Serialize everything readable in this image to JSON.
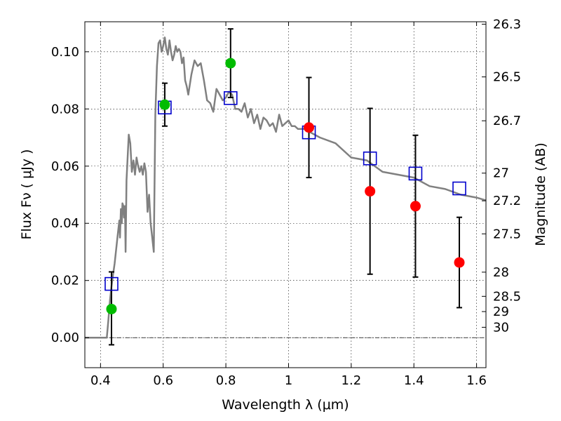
{
  "chart_data": {
    "type": "scatter",
    "xlabel": "Wavelength  λ (μm)",
    "ylabel": "Flux  Fν  ( μJy )",
    "y2label": "Magnitude (AB)",
    "xlim": [
      0.35,
      1.63
    ],
    "ylim": [
      -0.0105,
      0.1105
    ],
    "x_ticks": [
      {
        "value": 0.4,
        "label": "0.4"
      },
      {
        "value": 0.6,
        "label": "0.6"
      },
      {
        "value": 0.8,
        "label": "0.8"
      },
      {
        "value": 1.0,
        "label": "1"
      },
      {
        "value": 1.2,
        "label": "1.2"
      },
      {
        "value": 1.4,
        "label": "1.4"
      },
      {
        "value": 1.6,
        "label": "1.6"
      }
    ],
    "y_ticks": [
      {
        "value": 0.0,
        "label": "0.00"
      },
      {
        "value": 0.02,
        "label": "0.02"
      },
      {
        "value": 0.04,
        "label": "0.04"
      },
      {
        "value": 0.06,
        "label": "0.06"
      },
      {
        "value": 0.08,
        "label": "0.08"
      },
      {
        "value": 0.1,
        "label": "0.10"
      }
    ],
    "y2_ticks": [
      {
        "value": 26.3,
        "label": "26.3"
      },
      {
        "value": 26.5,
        "label": "26.5"
      },
      {
        "value": 26.7,
        "label": "26.7"
      },
      {
        "value": 27.0,
        "label": "27"
      },
      {
        "value": 27.2,
        "label": "27.2"
      },
      {
        "value": 27.5,
        "label": "27.5"
      },
      {
        "value": 28.0,
        "label": "28"
      },
      {
        "value": 28.5,
        "label": "28.5"
      },
      {
        "value": 29.0,
        "label": "29"
      },
      {
        "value": 30.0,
        "label": "30"
      }
    ],
    "grid": true,
    "zero_line": true,
    "model_sed": {
      "color": "#808080",
      "x": [
        0.35,
        0.41,
        0.42,
        0.425,
        0.43,
        0.435,
        0.44,
        0.445,
        0.45,
        0.455,
        0.46,
        0.462,
        0.465,
        0.468,
        0.47,
        0.473,
        0.475,
        0.478,
        0.48,
        0.483,
        0.486,
        0.49,
        0.495,
        0.5,
        0.505,
        0.51,
        0.515,
        0.52,
        0.525,
        0.53,
        0.535,
        0.54,
        0.545,
        0.55,
        0.555,
        0.56,
        0.565,
        0.57,
        0.575,
        0.58,
        0.585,
        0.59,
        0.595,
        0.6,
        0.605,
        0.61,
        0.615,
        0.62,
        0.625,
        0.63,
        0.635,
        0.64,
        0.645,
        0.65,
        0.655,
        0.66,
        0.665,
        0.67,
        0.675,
        0.68,
        0.69,
        0.7,
        0.71,
        0.72,
        0.73,
        0.74,
        0.75,
        0.76,
        0.77,
        0.78,
        0.79,
        0.8,
        0.81,
        0.82,
        0.83,
        0.84,
        0.85,
        0.86,
        0.87,
        0.88,
        0.89,
        0.9,
        0.91,
        0.92,
        0.93,
        0.94,
        0.95,
        0.96,
        0.97,
        0.98,
        0.99,
        1.0,
        1.01,
        1.02,
        1.03,
        1.05,
        1.1,
        1.15,
        1.2,
        1.25,
        1.3,
        1.35,
        1.4,
        1.45,
        1.5,
        1.55,
        1.6,
        1.63
      ],
      "y": [
        0.0,
        0.0,
        0.0,
        0.006,
        0.013,
        0.018,
        0.022,
        0.026,
        0.031,
        0.036,
        0.041,
        0.035,
        0.045,
        0.04,
        0.047,
        0.046,
        0.042,
        0.046,
        0.03,
        0.055,
        0.062,
        0.071,
        0.068,
        0.058,
        0.062,
        0.057,
        0.063,
        0.06,
        0.058,
        0.06,
        0.057,
        0.061,
        0.058,
        0.044,
        0.05,
        0.04,
        0.035,
        0.03,
        0.078,
        0.095,
        0.103,
        0.104,
        0.1,
        0.102,
        0.105,
        0.101,
        0.099,
        0.104,
        0.1,
        0.097,
        0.099,
        0.102,
        0.1,
        0.101,
        0.1,
        0.096,
        0.098,
        0.09,
        0.088,
        0.085,
        0.092,
        0.097,
        0.095,
        0.096,
        0.09,
        0.083,
        0.082,
        0.079,
        0.087,
        0.085,
        0.083,
        0.084,
        0.086,
        0.085,
        0.08,
        0.08,
        0.079,
        0.082,
        0.077,
        0.08,
        0.075,
        0.078,
        0.073,
        0.077,
        0.076,
        0.074,
        0.075,
        0.072,
        0.078,
        0.074,
        0.075,
        0.076,
        0.074,
        0.074,
        0.073,
        0.073,
        0.07,
        0.068,
        0.063,
        0.062,
        0.058,
        0.057,
        0.056,
        0.053,
        0.052,
        0.05,
        0.049,
        0.048
      ]
    },
    "model_fluxes": {
      "color": "#0000cc",
      "x": [
        0.435,
        0.605,
        0.815,
        1.065,
        1.26,
        1.405,
        1.545
      ],
      "y": [
        0.0188,
        0.0805,
        0.0838,
        0.0718,
        0.0627,
        0.0574,
        0.0522
      ]
    },
    "observed": [
      {
        "x": 0.435,
        "y": 0.01,
        "err_low": 0.0125,
        "err_high": 0.013,
        "color": "#00bb00"
      },
      {
        "x": 0.605,
        "y": 0.0815,
        "err_low": 0.0075,
        "err_high": 0.0075,
        "color": "#00bb00"
      },
      {
        "x": 0.815,
        "y": 0.096,
        "err_low": 0.012,
        "err_high": 0.012,
        "color": "#00bb00"
      },
      {
        "x": 1.065,
        "y": 0.0735,
        "err_low": 0.0175,
        "err_high": 0.0175,
        "color": "#ff0000"
      },
      {
        "x": 1.26,
        "y": 0.0512,
        "err_low": 0.029,
        "err_high": 0.029,
        "color": "#ff0000"
      },
      {
        "x": 1.405,
        "y": 0.046,
        "err_low": 0.0248,
        "err_high": 0.0248,
        "color": "#ff0000"
      },
      {
        "x": 1.545,
        "y": 0.0263,
        "err_low": 0.0158,
        "err_high": 0.0158,
        "color": "#ff0000"
      }
    ]
  }
}
